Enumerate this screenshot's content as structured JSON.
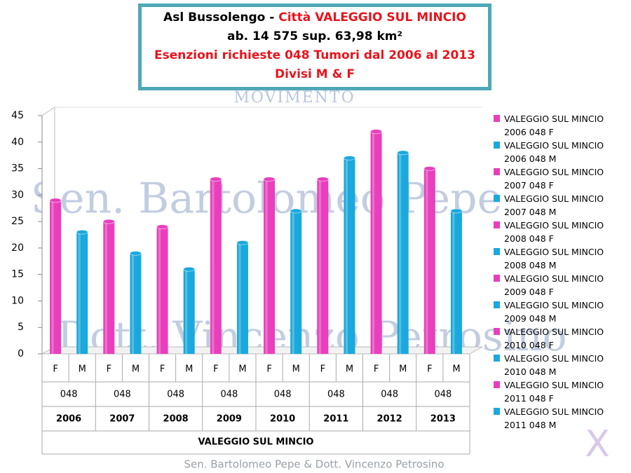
{
  "header": {
    "title_a": "Asl Bussolengo - ",
    "title_b": "Città VALEGGIO SUL MINCIO",
    "line2": "ab. 14 575  sup. 63,98 km²",
    "line3": "Esenzioni richieste 048 Tumori  dal 2006 al 2013",
    "line4": "Divisi M & F"
  },
  "watermarks": {
    "logo": "MOVIMENTO",
    "name1": "Sen. Bartolomeo Pepe",
    "name2": "Dott. Vincenzo Petrosino",
    "footer": "Sen. Bartolomeo Pepe &  Dott. Vincenzo Petrosino"
  },
  "chart_data": {
    "type": "bar",
    "categories": [
      "F",
      "M",
      "F",
      "M",
      "F",
      "M",
      "F",
      "M",
      "F",
      "M",
      "F",
      "M",
      "F",
      "M",
      "F",
      "M"
    ],
    "codes": [
      "048",
      "048",
      "048",
      "048",
      "048",
      "048",
      "048",
      "048"
    ],
    "years": [
      "2006",
      "2007",
      "2008",
      "2009",
      "2010",
      "2011",
      "2012",
      "2013"
    ],
    "group": "VALEGGIO SUL MINCIO",
    "values": [
      29,
      23,
      25,
      19,
      24,
      16,
      33,
      21,
      33,
      27,
      33,
      37,
      42,
      38,
      35,
      27
    ],
    "colors": [
      "#e83fbd",
      "#1aa8dd",
      "#e83fbd",
      "#1aa8dd",
      "#e83fbd",
      "#1aa8dd",
      "#e83fbd",
      "#1aa8dd",
      "#e83fbd",
      "#1aa8dd",
      "#e83fbd",
      "#1aa8dd",
      "#e83fbd",
      "#1aa8dd",
      "#e83fbd",
      "#1aa8dd"
    ],
    "ylim": [
      0,
      45
    ],
    "yticks": [
      0,
      5,
      10,
      15,
      20,
      25,
      30,
      35,
      40,
      45
    ],
    "grid": false,
    "legend": [
      {
        "name": "VALEGGIO SUL MINCIO 2006 048 F",
        "color": "#e83fbd"
      },
      {
        "name": "VALEGGIO SUL MINCIO 2006 048 M",
        "color": "#1aa8dd"
      },
      {
        "name": "VALEGGIO SUL MINCIO 2007 048 F",
        "color": "#e83fbd"
      },
      {
        "name": "VALEGGIO SUL MINCIO 2007 048 M",
        "color": "#1aa8dd"
      },
      {
        "name": "VALEGGIO SUL MINCIO 2008 048 F",
        "color": "#e83fbd"
      },
      {
        "name": "VALEGGIO SUL MINCIO 2008 048 M",
        "color": "#1aa8dd"
      },
      {
        "name": "VALEGGIO SUL MINCIO 2009 048 F",
        "color": "#e83fbd"
      },
      {
        "name": "VALEGGIO SUL MINCIO 2009 048 M",
        "color": "#1aa8dd"
      },
      {
        "name": "VALEGGIO SUL MINCIO 2010 048 F",
        "color": "#e83fbd"
      },
      {
        "name": "VALEGGIO SUL MINCIO 2010 048 M",
        "color": "#1aa8dd"
      },
      {
        "name": "VALEGGIO SUL MINCIO 2011 048 F",
        "color": "#e83fbd"
      },
      {
        "name": "VALEGGIO SUL MINCIO 2011 048 M",
        "color": "#1aa8dd"
      }
    ]
  }
}
